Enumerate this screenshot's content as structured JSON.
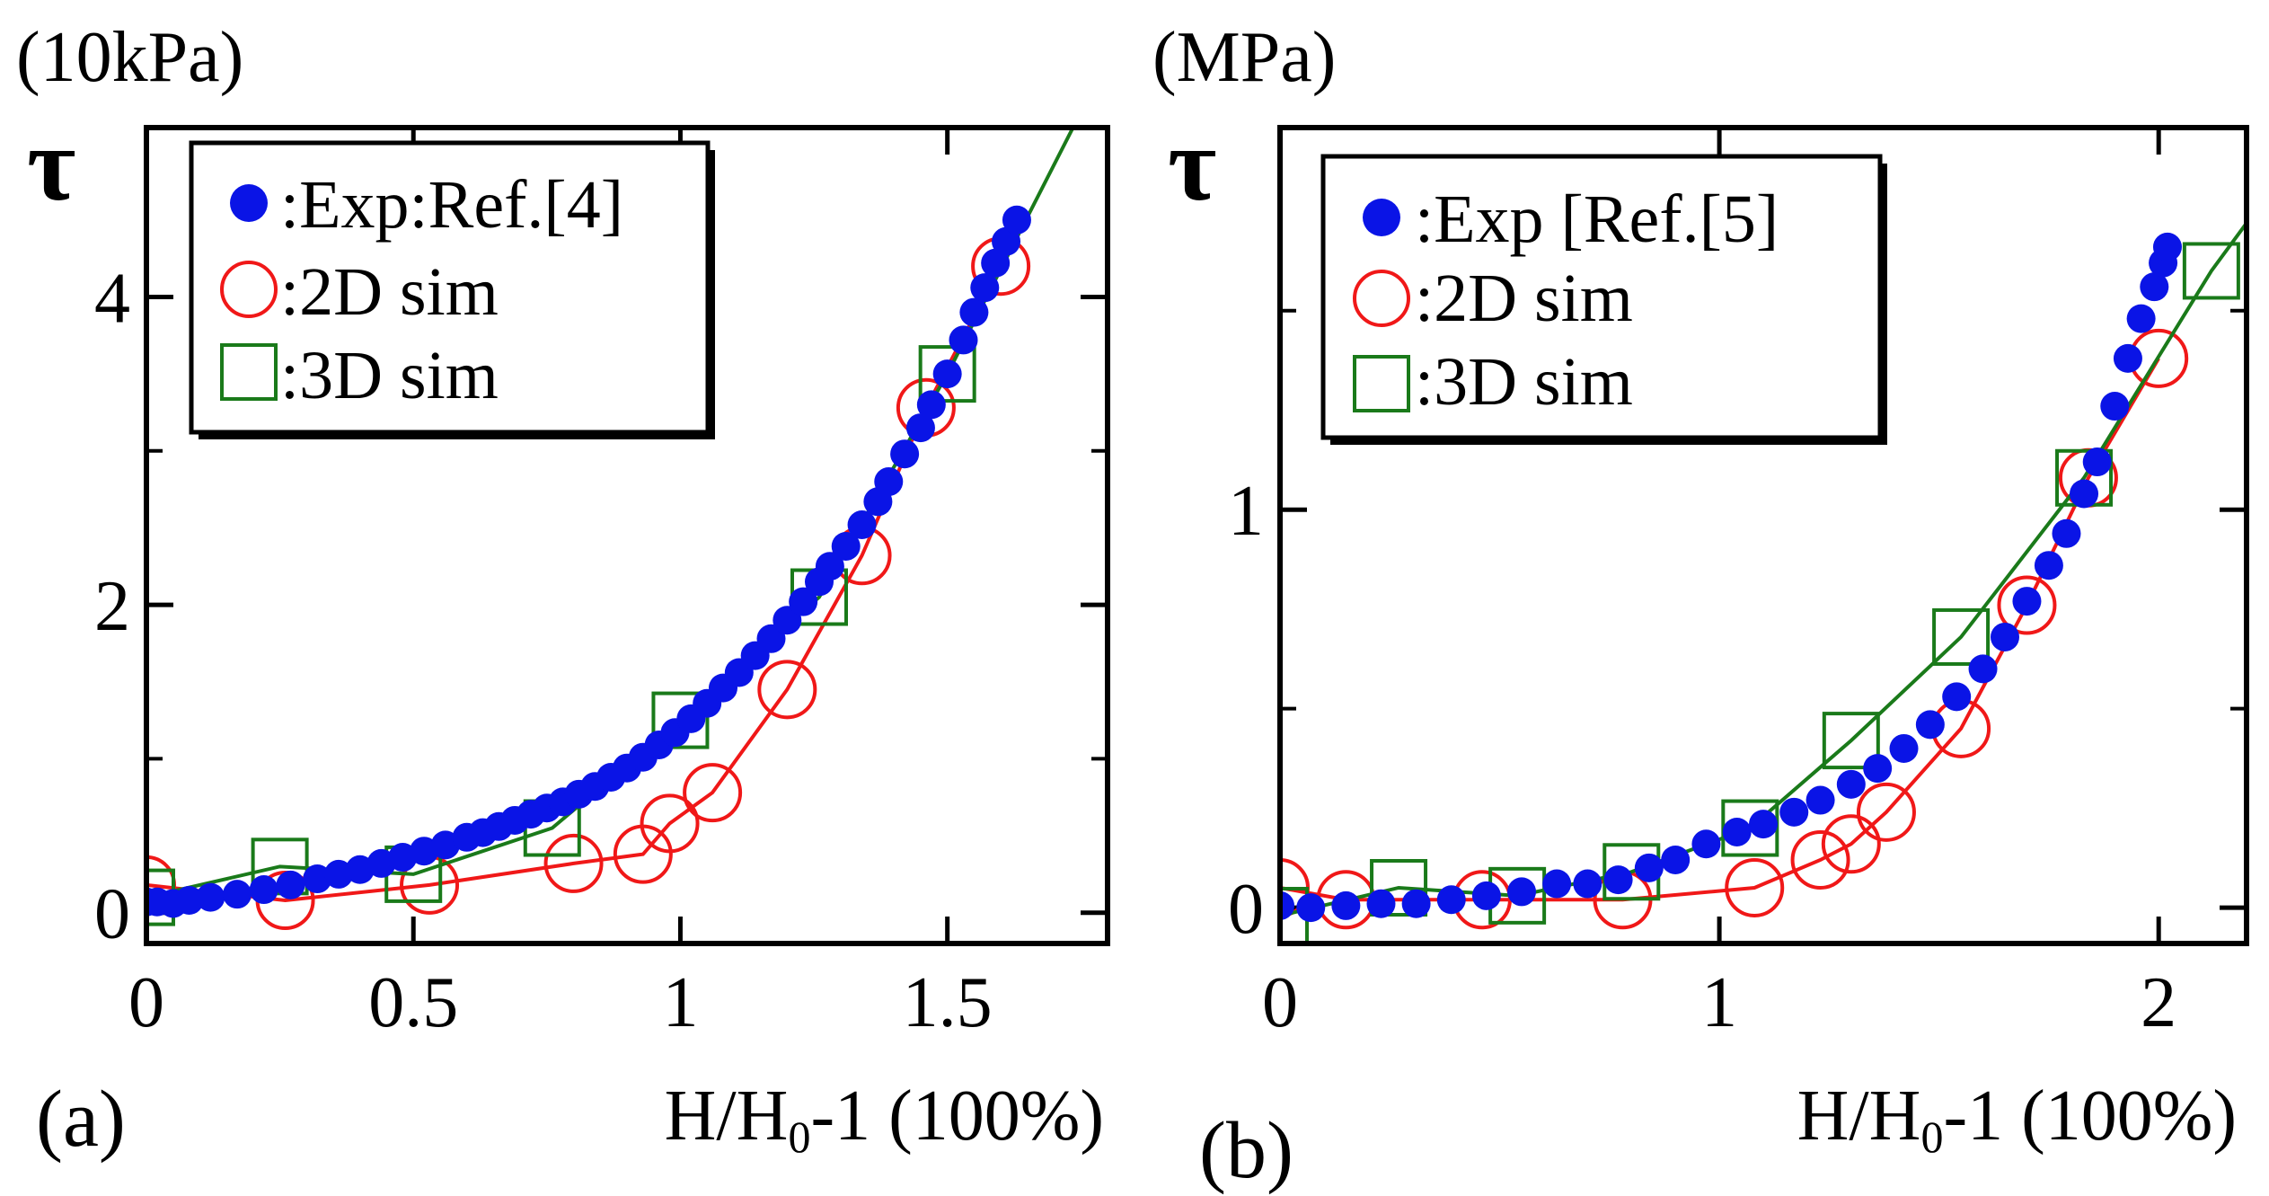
{
  "colors": {
    "exp": "#0a14e6",
    "sim2d": "#f01818",
    "sim3d": "#1a7a1a",
    "axis": "#000000",
    "background": "#ffffff"
  },
  "chart_data": [
    {
      "type": "scatter",
      "panel_label": "(a)",
      "unit_label": "(10kPa)",
      "ylabel": "τ",
      "xlabel_main": "H/H",
      "xlabel_sub": "0",
      "xlabel_tail": "-1  (100%)",
      "xlim": [
        0,
        1.8
      ],
      "ylim": [
        -0.2,
        5.1
      ],
      "xticks": [
        {
          "value": 0,
          "label": "0"
        },
        {
          "value": 0.5,
          "label": "0.5"
        },
        {
          "value": 1,
          "label": "1"
        },
        {
          "value": 1.5,
          "label": "1.5"
        }
      ],
      "yticks": [
        {
          "value": 0,
          "label": "0"
        },
        {
          "value": 2,
          "label": "2"
        },
        {
          "value": 4,
          "label": "4"
        }
      ],
      "minor_yticks": [
        1,
        3
      ],
      "legend_position": "top-left",
      "series": [
        {
          "name": ":Exp:Ref.[4]",
          "marker": "filled-circle",
          "color_key": "exp",
          "x": [
            0.0,
            0.02,
            0.05,
            0.08,
            0.12,
            0.17,
            0.22,
            0.27,
            0.32,
            0.36,
            0.4,
            0.44,
            0.48,
            0.52,
            0.56,
            0.6,
            0.63,
            0.66,
            0.69,
            0.72,
            0.75,
            0.78,
            0.81,
            0.84,
            0.87,
            0.9,
            0.93,
            0.96,
            0.99,
            1.02,
            1.05,
            1.08,
            1.11,
            1.14,
            1.17,
            1.2,
            1.23,
            1.26,
            1.28,
            1.31,
            1.34,
            1.37,
            1.39,
            1.42,
            1.45,
            1.47,
            1.5,
            1.53,
            1.55,
            1.57,
            1.59,
            1.61,
            1.63
          ],
          "y": [
            0.07,
            0.07,
            0.06,
            0.08,
            0.1,
            0.12,
            0.15,
            0.18,
            0.22,
            0.25,
            0.28,
            0.32,
            0.36,
            0.4,
            0.44,
            0.49,
            0.52,
            0.56,
            0.6,
            0.64,
            0.68,
            0.72,
            0.77,
            0.82,
            0.88,
            0.94,
            1.01,
            1.09,
            1.17,
            1.26,
            1.36,
            1.46,
            1.56,
            1.67,
            1.78,
            1.9,
            2.02,
            2.15,
            2.25,
            2.38,
            2.52,
            2.67,
            2.8,
            2.98,
            3.15,
            3.3,
            3.5,
            3.72,
            3.9,
            4.06,
            4.22,
            4.36,
            4.5
          ]
        },
        {
          "name": ":2D sim",
          "marker": "open-circle",
          "color_key": "sim2d",
          "connected": true,
          "x": [
            0.0,
            0.26,
            0.53,
            0.8,
            0.93,
            0.98,
            1.06,
            1.2,
            1.34,
            1.46,
            1.6
          ],
          "y": [
            0.18,
            0.08,
            0.18,
            0.32,
            0.38,
            0.58,
            0.78,
            1.45,
            2.32,
            3.28,
            4.2
          ]
        },
        {
          "name": ":3D sim",
          "marker": "open-square",
          "color_key": "sim3d",
          "connected": true,
          "line_x": [
            0.0,
            0.25,
            0.5,
            0.76,
            1.0,
            1.26,
            1.5,
            1.75
          ],
          "line_y": [
            0.1,
            0.3,
            0.25,
            0.55,
            1.25,
            2.05,
            3.5,
            5.2
          ],
          "x": [
            0.0,
            0.25,
            0.5,
            0.76,
            1.0,
            1.26,
            1.5
          ],
          "y": [
            0.1,
            0.3,
            0.25,
            0.55,
            1.25,
            2.05,
            3.5
          ]
        }
      ]
    },
    {
      "type": "scatter",
      "panel_label": "(b)",
      "unit_label": "(MPa)",
      "ylabel": "τ",
      "xlabel_main": "H/H",
      "xlabel_sub": "0",
      "xlabel_tail": "-1  (100%)",
      "xlim": [
        0,
        2.2
      ],
      "ylim": [
        -0.09,
        1.96
      ],
      "xticks": [
        {
          "value": 0,
          "label": "0"
        },
        {
          "value": 1,
          "label": "1"
        },
        {
          "value": 2,
          "label": "2"
        }
      ],
      "yticks": [
        {
          "value": 0,
          "label": "0"
        },
        {
          "value": 1,
          "label": "1"
        }
      ],
      "minor_yticks": [
        0.5,
        1.5
      ],
      "legend_position": "top-left",
      "series": [
        {
          "name": ":Exp [Ref.[5]",
          "marker": "filled-circle",
          "color_key": "exp",
          "x": [
            0.0,
            0.07,
            0.15,
            0.23,
            0.31,
            0.39,
            0.47,
            0.55,
            0.63,
            0.7,
            0.77,
            0.84,
            0.9,
            0.97,
            1.04,
            1.1,
            1.17,
            1.23,
            1.3,
            1.36,
            1.42,
            1.48,
            1.54,
            1.6,
            1.65,
            1.7,
            1.75,
            1.79,
            1.83,
            1.86,
            1.9,
            1.93,
            1.96,
            1.99,
            2.01,
            2.02
          ],
          "y": [
            0.005,
            0.0,
            0.005,
            0.01,
            0.01,
            0.02,
            0.03,
            0.04,
            0.06,
            0.06,
            0.07,
            0.1,
            0.12,
            0.16,
            0.19,
            0.21,
            0.24,
            0.27,
            0.31,
            0.35,
            0.4,
            0.46,
            0.53,
            0.6,
            0.68,
            0.77,
            0.86,
            0.94,
            1.04,
            1.12,
            1.26,
            1.38,
            1.48,
            1.56,
            1.62,
            1.66
          ]
        },
        {
          "name": ":2D sim",
          "marker": "open-circle",
          "color_key": "sim2d",
          "connected": true,
          "x": [
            0.0,
            0.15,
            0.46,
            0.78,
            1.08,
            1.23,
            1.3,
            1.38,
            1.55,
            1.7,
            1.84,
            2.0
          ],
          "y": [
            0.05,
            0.02,
            0.02,
            0.02,
            0.05,
            0.12,
            0.16,
            0.24,
            0.45,
            0.76,
            1.08,
            1.38
          ]
        },
        {
          "name": ":3D sim",
          "marker": "open-square",
          "color_key": "sim3d",
          "connected": true,
          "line_x": [
            0.0,
            0.27,
            0.54,
            0.8,
            1.07,
            1.3,
            1.55,
            1.83,
            2.12,
            2.22
          ],
          "line_y": [
            -0.02,
            0.05,
            0.03,
            0.09,
            0.2,
            0.42,
            0.68,
            1.08,
            1.6,
            1.75
          ],
          "x": [
            0.0,
            0.27,
            0.54,
            0.8,
            1.07,
            1.3,
            1.55,
            1.83,
            2.12
          ],
          "y": [
            -0.02,
            0.05,
            0.03,
            0.09,
            0.2,
            0.42,
            0.68,
            1.08,
            1.6
          ]
        }
      ]
    }
  ]
}
